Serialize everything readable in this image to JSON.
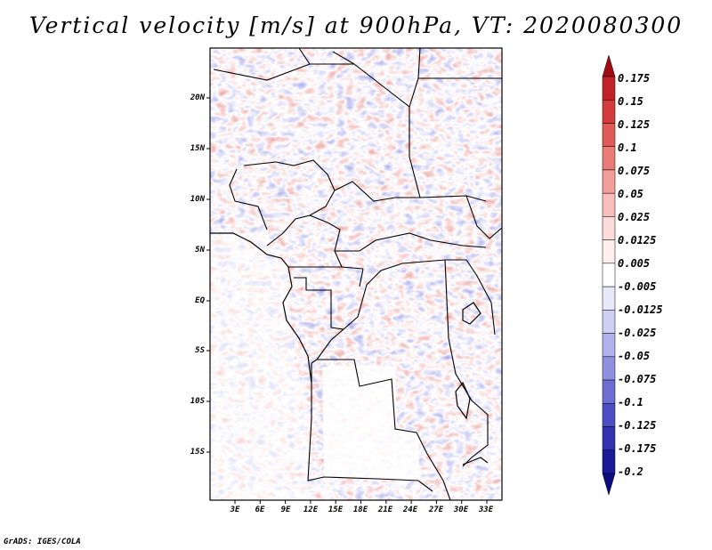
{
  "title": "Vertical velocity [m/s] at 900hPa, VT: 2020080300",
  "lat_labels": [
    "20N",
    "15N",
    "10N",
    "5N",
    "EQ",
    "5S",
    "10S",
    "15S"
  ],
  "lon_labels": [
    "3E",
    "6E",
    "9E",
    "12E",
    "15E",
    "18E",
    "21E",
    "24E",
    "27E",
    "30E",
    "33E"
  ],
  "colorbar": {
    "labels": [
      "0.175",
      "0.15",
      "0.125",
      "0.1",
      "0.075",
      "0.05",
      "0.025",
      "0.0125",
      "0.005",
      "-0.005",
      "-0.0125",
      "-0.025",
      "-0.05",
      "-0.075",
      "-0.1",
      "-0.125",
      "-0.175",
      "-0.2"
    ],
    "colors": [
      "#a00c12",
      "#c02228",
      "#d43c3c",
      "#e05a58",
      "#ea7c78",
      "#f29e9a",
      "#f7bebb",
      "#fbdcda",
      "#fff0ee",
      "#ffffff",
      "#e8e8f8",
      "#cfcff2",
      "#b2b2ec",
      "#9090e0",
      "#6e6ed2",
      "#4e4ec4",
      "#3232b0",
      "#1a1a96",
      "#0c0c80"
    ]
  },
  "credit": "GrADS: IGES/COLA"
}
